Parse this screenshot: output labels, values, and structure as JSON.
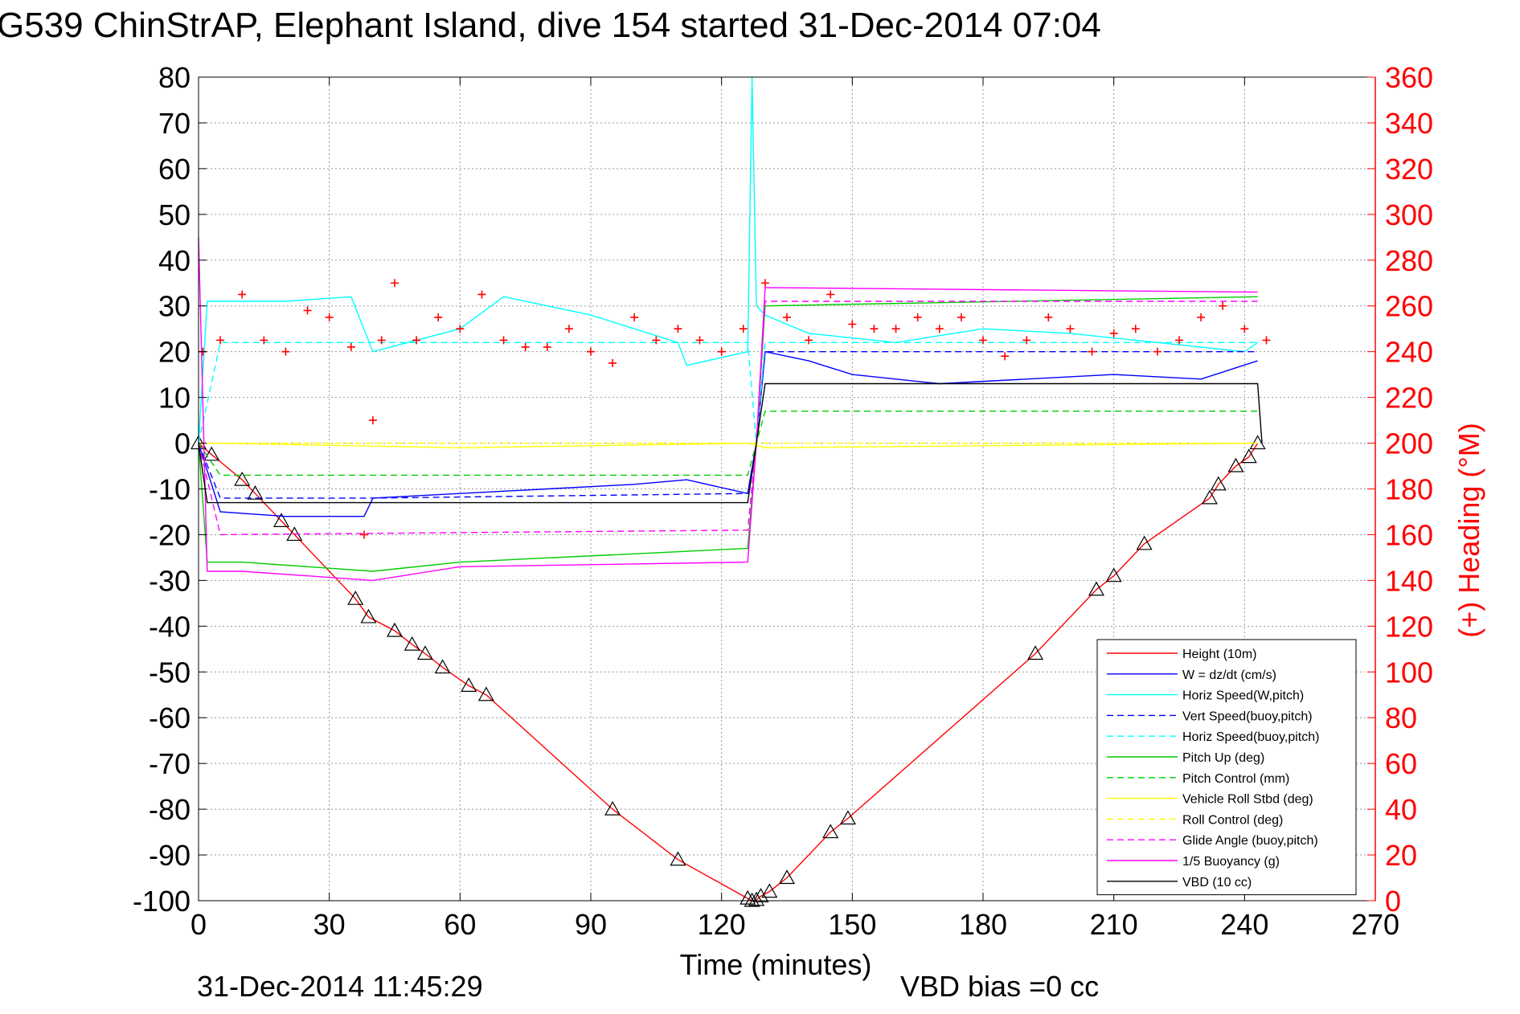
{
  "chart_data": {
    "type": "line",
    "title": "G539 ChinStrAP, Elephant Island, dive 154 started 31-Dec-2014 07:04",
    "xlabel": "Time (minutes)",
    "ylabel_right": "(+) Heading (°M)",
    "xlim": [
      0,
      270
    ],
    "ylim_left": [
      -100,
      80
    ],
    "ylim_right": [
      0,
      360
    ],
    "xticks": [
      "0",
      "30",
      "60",
      "90",
      "120",
      "150",
      "180",
      "210",
      "240",
      "270"
    ],
    "yticks_left": [
      "80",
      "70",
      "60",
      "50",
      "40",
      "30",
      "20",
      "10",
      "0",
      "-10",
      "-20",
      "-30",
      "-40",
      "-50",
      "-60",
      "-70",
      "-80",
      "-90",
      "-100"
    ],
    "yticks_right": [
      "360",
      "340",
      "320",
      "300",
      "280",
      "260",
      "240",
      "220",
      "200",
      "180",
      "160",
      "140",
      "120",
      "100",
      "80",
      "60",
      "40",
      "20",
      "0"
    ],
    "grid": true,
    "legend_position": "bottom-right",
    "footer_left": "31-Dec-2014 11:45:29",
    "footer_right": "VBD bias =0 cc",
    "series": [
      {
        "name": "Height (10m)",
        "color": "#ff0000",
        "style": "solid",
        "marker": "triangle",
        "x": [
          0,
          3,
          10,
          13,
          19,
          22,
          36,
          39,
          45,
          49,
          52,
          56,
          62,
          66,
          95,
          110,
          126,
          127,
          128,
          129,
          131,
          135,
          145,
          149,
          192,
          206,
          210,
          217,
          232,
          234,
          238,
          241,
          243
        ],
        "y": [
          0,
          -2.5,
          -8,
          -11,
          -17,
          -20,
          -34,
          -38,
          -41,
          -44,
          -46,
          -49,
          -53,
          -55,
          -80,
          -91,
          -99.5,
          -100,
          -99.8,
          -99,
          -98,
          -95,
          -85,
          -82,
          -46,
          -32,
          -29,
          -22,
          -12,
          -9,
          -5,
          -3,
          0
        ]
      },
      {
        "name": "W = dz/dt (cm/s)",
        "color": "#0000ff",
        "style": "solid",
        "x": [
          0,
          5,
          20,
          38,
          40,
          60,
          80,
          100,
          112,
          126,
          128,
          130,
          140,
          150,
          170,
          190,
          210,
          230,
          243
        ],
        "y": [
          0,
          -15,
          -16,
          -16,
          -12,
          -11,
          -10,
          -9,
          -8,
          -11,
          0,
          20,
          18,
          15,
          13,
          14,
          15,
          14,
          18
        ]
      },
      {
        "name": "Horiz Speed(W,pitch)",
        "color": "#00ffff",
        "style": "solid",
        "x": [
          0,
          2,
          10,
          20,
          35,
          40,
          60,
          70,
          90,
          110,
          112,
          126,
          127,
          128,
          130,
          140,
          160,
          180,
          200,
          220,
          240,
          243
        ],
        "y": [
          0,
          31,
          31,
          31,
          32,
          20,
          25,
          32,
          28,
          22,
          17,
          20,
          80,
          30,
          28,
          24,
          22,
          25,
          24,
          22,
          20,
          22
        ]
      },
      {
        "name": "Vert Speed(buoy,pitch)",
        "color": "#0000ff",
        "style": "dashed",
        "x": [
          0,
          5,
          40,
          126,
          128,
          130,
          243
        ],
        "y": [
          0,
          -12,
          -12,
          -11,
          0,
          20,
          20
        ]
      },
      {
        "name": "Horiz Speed(buoy,pitch)",
        "color": "#00ffff",
        "style": "dashed",
        "x": [
          0,
          5,
          40,
          126,
          128,
          130,
          243
        ],
        "y": [
          0,
          22,
          22,
          22,
          0,
          22,
          22
        ]
      },
      {
        "name": "Pitch Up (deg)",
        "color": "#00cc00",
        "style": "solid",
        "x": [
          0,
          2,
          10,
          40,
          60,
          126,
          128,
          130,
          243
        ],
        "y": [
          0,
          -26,
          -26,
          -28,
          -26,
          -23,
          0,
          30,
          32
        ]
      },
      {
        "name": "Pitch Control (mm)",
        "color": "#00cc00",
        "style": "dashed",
        "x": [
          0,
          5,
          126,
          128,
          130,
          243
        ],
        "y": [
          0,
          -7,
          -7,
          0,
          7,
          7
        ]
      },
      {
        "name": "Vehicle Roll Stbd (deg)",
        "color": "#ffff00",
        "style": "solid",
        "x": [
          0,
          5,
          60,
          126,
          130,
          243
        ],
        "y": [
          0,
          0,
          -1,
          0,
          -1,
          0
        ]
      },
      {
        "name": "Roll Control (deg)",
        "color": "#ffff00",
        "style": "dashed",
        "x": [
          0,
          5,
          126,
          130,
          243
        ],
        "y": [
          0,
          0,
          0,
          0,
          0
        ]
      },
      {
        "name": "Glide Angle (buoy,pitch)",
        "color": "#ff00ff",
        "style": "dashed",
        "x": [
          0,
          5,
          126,
          128,
          130,
          243
        ],
        "y": [
          0,
          -20,
          -19,
          0,
          31,
          31
        ]
      },
      {
        "name": "1/5 Buoyancy (g)",
        "color": "#ff00ff",
        "style": "solid",
        "x": [
          0,
          2,
          10,
          40,
          60,
          126,
          128,
          130,
          243
        ],
        "y": [
          45,
          -28,
          -28,
          -30,
          -27,
          -26,
          0,
          34,
          33
        ]
      },
      {
        "name": "VBD (10 cc)",
        "color": "#000000",
        "style": "solid",
        "x": [
          0,
          2,
          126,
          128,
          130,
          243,
          244
        ],
        "y": [
          0,
          -13,
          -13,
          0,
          13,
          13,
          0
        ]
      },
      {
        "name": "Heading",
        "color": "#ff0000",
        "style": "markers",
        "marker": "plus",
        "axis": "right",
        "x": [
          1,
          5,
          10,
          15,
          20,
          25,
          30,
          35,
          38,
          40,
          42,
          45,
          50,
          55,
          60,
          65,
          70,
          75,
          80,
          85,
          90,
          95,
          100,
          105,
          110,
          115,
          120,
          125,
          130,
          135,
          140,
          145,
          150,
          155,
          160,
          165,
          170,
          175,
          180,
          185,
          190,
          195,
          200,
          205,
          210,
          215,
          220,
          225,
          230,
          235,
          240,
          245
        ],
        "y": [
          240,
          245,
          265,
          245,
          240,
          258,
          255,
          242,
          160,
          210,
          245,
          270,
          245,
          255,
          250,
          265,
          245,
          242,
          242,
          250,
          240,
          235,
          255,
          245,
          250,
          245,
          240,
          250,
          270,
          255,
          245,
          265,
          252,
          250,
          250,
          255,
          250,
          255,
          245,
          238,
          245,
          255,
          250,
          240,
          248,
          250,
          240,
          245,
          255,
          260,
          250,
          245
        ]
      }
    ]
  }
}
